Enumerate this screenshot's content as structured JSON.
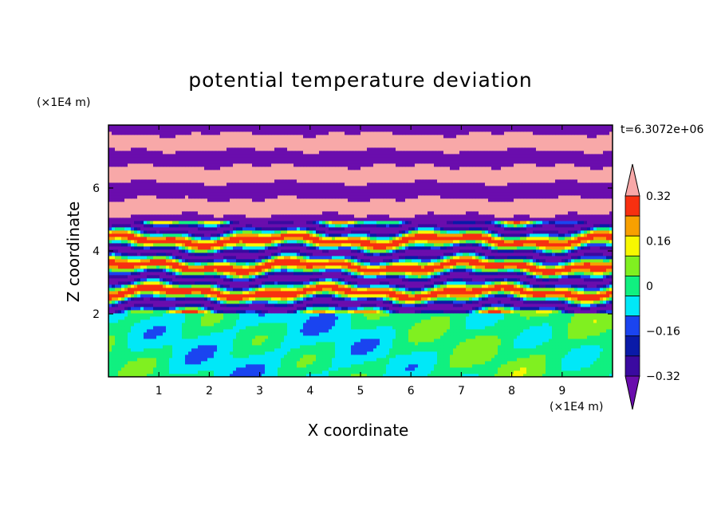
{
  "chart_data": {
    "type": "heatmap",
    "title": "potential temperature deviation",
    "xlabel": "X coordinate",
    "ylabel": "Z coordinate",
    "x_unit": "(×1E4 m)",
    "z_unit": "(×1E4 m)",
    "time_label": "t=6.3072e+06",
    "x_ticks": [
      1,
      2,
      3,
      4,
      5,
      6,
      7,
      8,
      9
    ],
    "z_ticks": [
      2,
      4,
      6
    ],
    "xlim": [
      0,
      10
    ],
    "zlim": [
      0,
      8
    ],
    "colorbar": {
      "levels": [
        -0.4,
        -0.32,
        -0.24,
        -0.16,
        -0.08,
        0,
        0.08,
        0.16,
        0.24,
        0.32,
        0.4
      ],
      "tick_values": [
        0.32,
        0.16,
        0,
        -0.16,
        -0.32
      ],
      "tick_labels": [
        "0.32",
        "0.16",
        "0",
        "−0.16",
        "−0.32"
      ],
      "colors": [
        "#6a0dad",
        "#3a0aa0",
        "#0a1aa8",
        "#1a44f0",
        "#00e8f8",
        "#10f080",
        "#80f020",
        "#f8f800",
        "#f8a000",
        "#f83010",
        "#f8a8a8"
      ],
      "under_color": "#6a0dad",
      "over_color": "#f8a8a8"
    },
    "layers": [
      {
        "z_range": [
          0,
          2
        ],
        "description_colors": [
          "#10f080",
          "#80f020"
        ]
      },
      {
        "z_range": [
          2,
          5
        ],
        "description_colors": [
          "#6a0dad",
          "#f8a8a8",
          "#f83010",
          "#f8f800",
          "#10f080",
          "#00e8f8",
          "#1a44f0"
        ]
      },
      {
        "z_range": [
          5,
          8
        ],
        "description_colors": [
          "#6a0dad",
          "#f8a8a8"
        ]
      }
    ]
  }
}
